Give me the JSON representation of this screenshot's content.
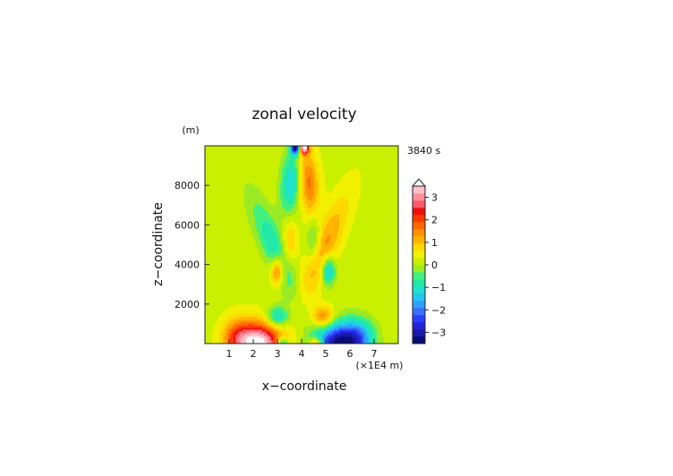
{
  "chart_data": {
    "type": "heatmap",
    "title": "zonal velocity",
    "xlabel": "x−coordinate",
    "ylabel": "z−coordinate",
    "x_unit": "(×1E4 m)",
    "y_unit": "(m)",
    "time_label": "3840 s",
    "xlim": [
      0,
      8
    ],
    "ylim": [
      0,
      10000
    ],
    "x_ticks": [
      1,
      2,
      3,
      4,
      5,
      6,
      7
    ],
    "y_ticks": [
      2000,
      4000,
      6000,
      8000
    ],
    "colorbar": {
      "levels": [
        -3.5,
        -3.25,
        -3,
        -2.75,
        -2.5,
        -2.25,
        -2,
        -1.75,
        -1.5,
        -1.25,
        -1,
        -0.75,
        -0.5,
        -0.25,
        0,
        0.25,
        0.5,
        0.75,
        1,
        1.25,
        1.5,
        1.75,
        2,
        2.25,
        2.5,
        2.75,
        3,
        3.25,
        3.5
      ],
      "tick_values": [
        3,
        2,
        1,
        0,
        -1,
        -2,
        -3
      ],
      "tick_labels": [
        "3",
        "2",
        "1",
        "0",
        "−1",
        "−2",
        "−3"
      ],
      "colors_low_to_high": [
        "#0a0a7a",
        "#1a1aa8",
        "#2323d8",
        "#2a40ff",
        "#3a70ff",
        "#2f9fff",
        "#22c8f0",
        "#20e0d0",
        "#22e8a8",
        "#40f080",
        "#9bea24",
        "#c8f000",
        "#f0f000",
        "#ffd800",
        "#ffb400",
        "#ff9000",
        "#ff6a00",
        "#ff3a00",
        "#ee1010",
        "#ff5a6a",
        "#ff8f9a",
        "#ffc0c8"
      ],
      "extend_top": true
    },
    "grid": false
  }
}
